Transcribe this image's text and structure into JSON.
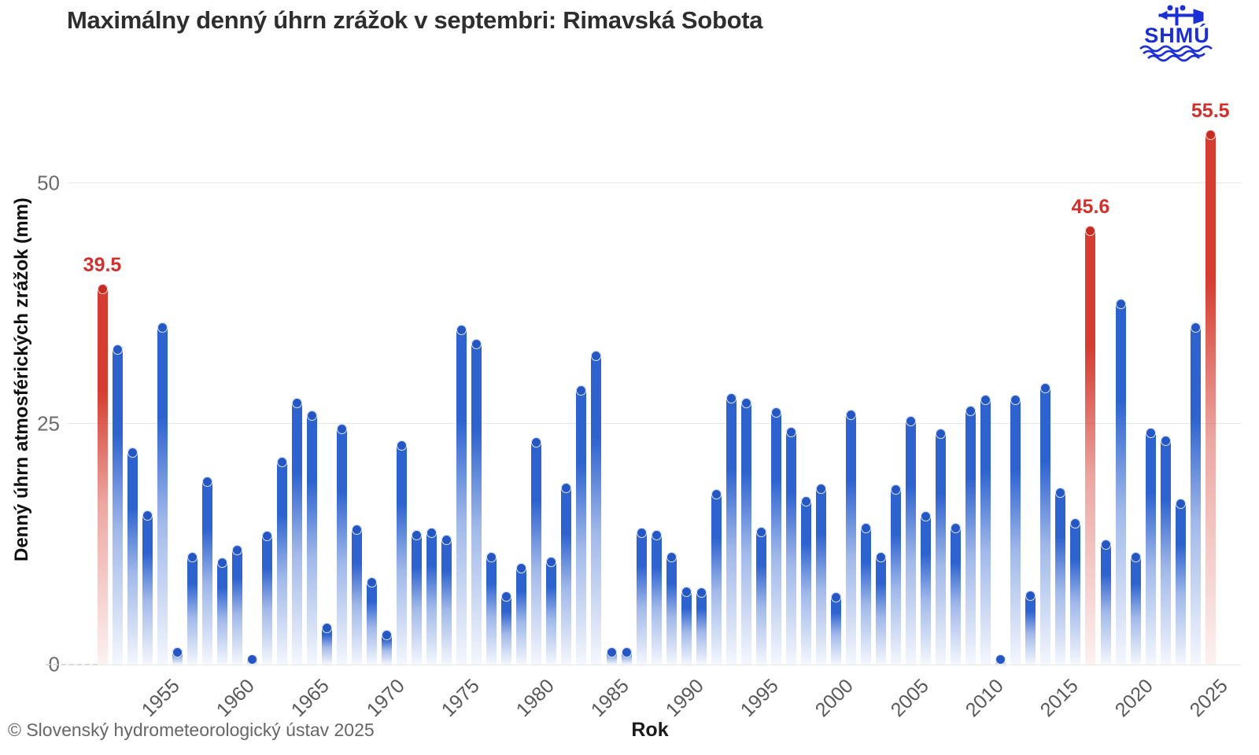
{
  "title": "Maximálny denný úhrn zrážok v septembri: Rimavská Sobota",
  "logo": {
    "text": "SHMÚ",
    "color": "#1c2fd4",
    "name": "shmu-logo"
  },
  "footer": "© Slovenský hydrometeorologický ústav 2025",
  "chart_data": {
    "type": "bar",
    "title": "Maximálny denný úhrn zrážok v septembri: Rimavská Sobota",
    "xlabel": "Rok",
    "ylabel": "Denný úhrn atmosférických zrážok (mm)",
    "ylim": [
      0,
      57.5
    ],
    "grid": "horizontal",
    "start_year": 1951,
    "end_year": 2025,
    "values": [
      39.5,
      33.2,
      22.5,
      16.0,
      35.5,
      1.8,
      11.7,
      19.5,
      11.1,
      12.4,
      1.0,
      13.9,
      21.6,
      27.7,
      26.4,
      4.3,
      25.0,
      14.5,
      9.1,
      3.6,
      23.3,
      14.0,
      14.2,
      13.5,
      35.3,
      33.8,
      11.7,
      7.6,
      10.5,
      23.6,
      11.2,
      18.9,
      29.0,
      32.6,
      1.8,
      1.8,
      14.2,
      14.0,
      11.7,
      8.1,
      8.0,
      18.2,
      28.2,
      27.7,
      14.3,
      26.7,
      24.7,
      17.5,
      18.8,
      7.5,
      26.5,
      14.7,
      11.7,
      18.7,
      25.8,
      15.9,
      24.5,
      14.7,
      26.9,
      28.0,
      0.4,
      28.0,
      7.7,
      29.2,
      18.4,
      15.2,
      45.6,
      13.0,
      38.0,
      11.7,
      24.6,
      23.8,
      17.2,
      35.5,
      55.5
    ],
    "highlights": [
      {
        "year": 1951,
        "label": "39.5"
      },
      {
        "year": 2017,
        "label": "45.6"
      },
      {
        "year": 2025,
        "label": "55.5"
      }
    ],
    "yticks": [
      {
        "value": 0,
        "label": "0"
      },
      {
        "value": 25,
        "label": "25"
      },
      {
        "value": 50,
        "label": "50"
      }
    ],
    "xticks": [
      "1955",
      "1960",
      "1965",
      "1970",
      "1975",
      "1980",
      "1985",
      "1990",
      "1995",
      "2000",
      "2005",
      "2010",
      "2015",
      "2020",
      "2025"
    ],
    "colors": {
      "bar": "#2e63cf",
      "bar_cap": "#2456c4",
      "bar_fade_mid": "rgba(46,99,207,0.45)",
      "bar_fade_end": "rgba(46,99,207,0.05)",
      "highlight": "#d53d31",
      "highlight_cap": "#c62d22",
      "highlight_fade_mid": "rgba(213,61,49,0.45)",
      "highlight_fade_end": "rgba(213,61,49,0.07)",
      "annotation_text": "#d2302c",
      "gridline": "#e7e7e7"
    }
  }
}
